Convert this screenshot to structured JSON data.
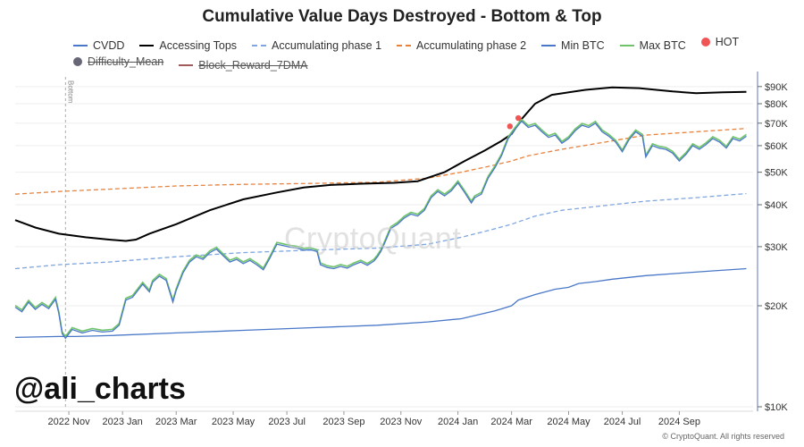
{
  "chart_data": {
    "type": "line",
    "title": "Cumulative Value Days Destroyed - Bottom & Top",
    "yscale": "log",
    "ylim": [
      10000,
      95000
    ],
    "y_ticks": [
      {
        "value": 10000,
        "label": "$10K"
      },
      {
        "value": 20000,
        "label": "$20K"
      },
      {
        "value": 30000,
        "label": "$30K"
      },
      {
        "value": 40000,
        "label": "$40K"
      },
      {
        "value": 50000,
        "label": "$50K"
      },
      {
        "value": 60000,
        "label": "$60K"
      },
      {
        "value": 70000,
        "label": "$70K"
      },
      {
        "value": 80000,
        "label": "$80K"
      },
      {
        "value": 90000,
        "label": "$90K"
      }
    ],
    "x_ticks": [
      {
        "value": 2022.88,
        "label": "2022 Nov"
      },
      {
        "value": 2023.04,
        "label": "2023 Jan"
      },
      {
        "value": 2023.2,
        "label": "2023 Mar"
      },
      {
        "value": 2023.37,
        "label": "2023 May"
      },
      {
        "value": 2023.53,
        "label": "2023 Jul"
      },
      {
        "value": 2023.7,
        "label": "2023 Sep"
      },
      {
        "value": 2023.87,
        "label": "2023 Nov"
      },
      {
        "value": 2024.04,
        "label": "2024 Jan"
      },
      {
        "value": 2024.2,
        "label": "2024 Mar"
      },
      {
        "value": 2024.37,
        "label": "2024 May"
      },
      {
        "value": 2024.53,
        "label": "2024 Jul"
      },
      {
        "value": 2024.7,
        "label": "2024 Sep"
      }
    ],
    "xlim": [
      2022.72,
      2024.92
    ],
    "vline": {
      "x": 2022.87,
      "label": "Bottom"
    },
    "series": [
      {
        "name": "Accessing Tops",
        "color": "#000000",
        "style": "solid",
        "points": [
          [
            2022.72,
            36000
          ],
          [
            2022.78,
            34200
          ],
          [
            2022.85,
            32800
          ],
          [
            2022.93,
            32000
          ],
          [
            2023.0,
            31500
          ],
          [
            2023.05,
            31200
          ],
          [
            2023.08,
            31500
          ],
          [
            2023.12,
            32800
          ],
          [
            2023.2,
            35000
          ],
          [
            2023.3,
            38500
          ],
          [
            2023.4,
            41500
          ],
          [
            2023.5,
            43500
          ],
          [
            2023.58,
            45000
          ],
          [
            2023.66,
            45800
          ],
          [
            2023.75,
            46200
          ],
          [
            2023.85,
            46500
          ],
          [
            2023.92,
            47000
          ],
          [
            2024.0,
            50000
          ],
          [
            2024.06,
            54000
          ],
          [
            2024.12,
            58000
          ],
          [
            2024.17,
            62000
          ],
          [
            2024.2,
            65000
          ],
          [
            2024.23,
            72000
          ],
          [
            2024.27,
            80000
          ],
          [
            2024.32,
            85000
          ],
          [
            2024.42,
            88000
          ],
          [
            2024.5,
            89500
          ],
          [
            2024.58,
            89000
          ],
          [
            2024.68,
            87000
          ],
          [
            2024.75,
            86000
          ],
          [
            2024.83,
            86500
          ],
          [
            2024.9,
            86800
          ]
        ]
      },
      {
        "name": "Accumulating phase 2",
        "color": "#e8823a",
        "style": "dashed",
        "points": [
          [
            2022.72,
            43000
          ],
          [
            2022.85,
            43800
          ],
          [
            2023.0,
            44500
          ],
          [
            2023.2,
            45500
          ],
          [
            2023.4,
            46000
          ],
          [
            2023.6,
            46300
          ],
          [
            2023.8,
            46700
          ],
          [
            2023.95,
            48000
          ],
          [
            2024.05,
            50000
          ],
          [
            2024.13,
            52000
          ],
          [
            2024.2,
            54000
          ],
          [
            2024.25,
            56000
          ],
          [
            2024.35,
            58500
          ],
          [
            2024.5,
            62000
          ],
          [
            2024.6,
            64500
          ],
          [
            2024.75,
            66000
          ],
          [
            2024.9,
            67500
          ]
        ]
      },
      {
        "name": "Accumulating phase 1",
        "color": "#7fa6e0",
        "style": "dashed",
        "points": [
          [
            2022.72,
            25800
          ],
          [
            2022.85,
            26500
          ],
          [
            2023.0,
            27000
          ],
          [
            2023.2,
            28000
          ],
          [
            2023.4,
            28800
          ],
          [
            2023.6,
            29300
          ],
          [
            2023.8,
            29700
          ],
          [
            2023.95,
            30500
          ],
          [
            2024.05,
            32000
          ],
          [
            2024.13,
            33500
          ],
          [
            2024.2,
            35000
          ],
          [
            2024.27,
            37000
          ],
          [
            2024.35,
            38500
          ],
          [
            2024.5,
            40000
          ],
          [
            2024.6,
            41000
          ],
          [
            2024.75,
            42000
          ],
          [
            2024.9,
            43200
          ]
        ]
      },
      {
        "name": "Min BTC",
        "color": "#4a78c8",
        "style": "solid",
        "points": [
          [
            2022.72,
            16100
          ],
          [
            2022.85,
            16200
          ],
          [
            2022.9,
            16200
          ],
          [
            2023.0,
            16300
          ],
          [
            2023.2,
            16600
          ],
          [
            2023.4,
            16900
          ],
          [
            2023.6,
            17200
          ],
          [
            2023.8,
            17500
          ],
          [
            2023.95,
            17900
          ],
          [
            2024.05,
            18300
          ],
          [
            2024.1,
            18800
          ],
          [
            2024.15,
            19300
          ],
          [
            2024.2,
            20000
          ],
          [
            2024.22,
            20800
          ],
          [
            2024.27,
            21600
          ],
          [
            2024.33,
            22400
          ],
          [
            2024.37,
            22700
          ],
          [
            2024.4,
            23300
          ],
          [
            2024.45,
            23600
          ],
          [
            2024.5,
            24000
          ],
          [
            2024.55,
            24300
          ],
          [
            2024.6,
            24600
          ],
          [
            2024.7,
            25000
          ],
          [
            2024.8,
            25400
          ],
          [
            2024.9,
            25800
          ]
        ]
      },
      {
        "name": "CVDD",
        "color": "#4a78c8",
        "style": "solid",
        "points": [
          [
            2022.72,
            19800
          ],
          [
            2022.74,
            19200
          ],
          [
            2022.76,
            20500
          ],
          [
            2022.78,
            19500
          ],
          [
            2022.8,
            20200
          ],
          [
            2022.82,
            19600
          ],
          [
            2022.84,
            20900
          ],
          [
            2022.85,
            19000
          ],
          [
            2022.86,
            16500
          ],
          [
            2022.87,
            16000
          ],
          [
            2022.89,
            17000
          ],
          [
            2022.92,
            16600
          ],
          [
            2022.95,
            16900
          ],
          [
            2022.98,
            16700
          ],
          [
            2023.01,
            16800
          ],
          [
            2023.03,
            17500
          ],
          [
            2023.05,
            20800
          ],
          [
            2023.07,
            21200
          ],
          [
            2023.09,
            22500
          ],
          [
            2023.1,
            23200
          ],
          [
            2023.12,
            22000
          ],
          [
            2023.13,
            23500
          ],
          [
            2023.15,
            24500
          ],
          [
            2023.17,
            23800
          ],
          [
            2023.19,
            20500
          ],
          [
            2023.2,
            22200
          ],
          [
            2023.22,
            25000
          ],
          [
            2023.24,
            27000
          ],
          [
            2023.26,
            28000
          ],
          [
            2023.28,
            27500
          ],
          [
            2023.3,
            28800
          ],
          [
            2023.32,
            29500
          ],
          [
            2023.34,
            28200
          ],
          [
            2023.36,
            27000
          ],
          [
            2023.38,
            27500
          ],
          [
            2023.4,
            26700
          ],
          [
            2023.42,
            27300
          ],
          [
            2023.44,
            26500
          ],
          [
            2023.46,
            25600
          ],
          [
            2023.48,
            27800
          ],
          [
            2023.5,
            30500
          ],
          [
            2023.52,
            30200
          ],
          [
            2023.54,
            29900
          ],
          [
            2023.56,
            29700
          ],
          [
            2023.58,
            29300
          ],
          [
            2023.6,
            29400
          ],
          [
            2023.62,
            29000
          ],
          [
            2023.63,
            26500
          ],
          [
            2023.65,
            26000
          ],
          [
            2023.67,
            25800
          ],
          [
            2023.69,
            26200
          ],
          [
            2023.71,
            25900
          ],
          [
            2023.73,
            26500
          ],
          [
            2023.75,
            27000
          ],
          [
            2023.77,
            26400
          ],
          [
            2023.79,
            27200
          ],
          [
            2023.8,
            28000
          ],
          [
            2023.81,
            29000
          ],
          [
            2023.82,
            30500
          ],
          [
            2023.84,
            34000
          ],
          [
            2023.86,
            35000
          ],
          [
            2023.88,
            36500
          ],
          [
            2023.9,
            37500
          ],
          [
            2023.92,
            37000
          ],
          [
            2023.94,
            38500
          ],
          [
            2023.96,
            42000
          ],
          [
            2023.98,
            43800
          ],
          [
            2024.0,
            42500
          ],
          [
            2024.02,
            44000
          ],
          [
            2024.04,
            46500
          ],
          [
            2024.06,
            43500
          ],
          [
            2024.08,
            40500
          ],
          [
            2024.09,
            42000
          ],
          [
            2024.11,
            43000
          ],
          [
            2024.13,
            48000
          ],
          [
            2024.15,
            51500
          ],
          [
            2024.17,
            56000
          ],
          [
            2024.19,
            63000
          ],
          [
            2024.21,
            67000
          ],
          [
            2024.23,
            71000
          ],
          [
            2024.25,
            68000
          ],
          [
            2024.27,
            69000
          ],
          [
            2024.29,
            66000
          ],
          [
            2024.31,
            63500
          ],
          [
            2024.33,
            64500
          ],
          [
            2024.35,
            61000
          ],
          [
            2024.37,
            63000
          ],
          [
            2024.39,
            66500
          ],
          [
            2024.41,
            69000
          ],
          [
            2024.43,
            68000
          ],
          [
            2024.45,
            70000
          ],
          [
            2024.47,
            66000
          ],
          [
            2024.49,
            64000
          ],
          [
            2024.51,
            61500
          ],
          [
            2024.53,
            57500
          ],
          [
            2024.55,
            62500
          ],
          [
            2024.57,
            66000
          ],
          [
            2024.59,
            64000
          ],
          [
            2024.6,
            55500
          ],
          [
            2024.62,
            60000
          ],
          [
            2024.64,
            59000
          ],
          [
            2024.66,
            58500
          ],
          [
            2024.68,
            57000
          ],
          [
            2024.7,
            54000
          ],
          [
            2024.72,
            56500
          ],
          [
            2024.74,
            60000
          ],
          [
            2024.76,
            58500
          ],
          [
            2024.78,
            60500
          ],
          [
            2024.8,
            63000
          ],
          [
            2024.82,
            61500
          ],
          [
            2024.84,
            59000
          ],
          [
            2024.86,
            63000
          ],
          [
            2024.88,
            62000
          ],
          [
            2024.9,
            64000
          ]
        ]
      }
    ],
    "hot_points": [
      [
        2024.195,
        68500
      ],
      [
        2024.22,
        72500
      ]
    ],
    "legend": [
      {
        "name": "CVDD",
        "color": "#4a78c8",
        "marker": "line",
        "hidden": false
      },
      {
        "name": "Accessing Tops",
        "color": "#000000",
        "marker": "line",
        "hidden": false
      },
      {
        "name": "Accumulating phase 1",
        "color": "#7fa6e0",
        "marker": "dashed",
        "hidden": false
      },
      {
        "name": "Accumulating phase 2",
        "color": "#e8823a",
        "marker": "dashed",
        "hidden": false
      },
      {
        "name": "Min BTC",
        "color": "#4a78c8",
        "marker": "line",
        "hidden": false
      },
      {
        "name": "Max BTC",
        "color": "#6fc46a",
        "marker": "line",
        "hidden": false
      },
      {
        "name": "HOT",
        "color": "#f05454",
        "marker": "dot",
        "hidden": false
      },
      {
        "name": "Difficulty_Mean",
        "color": "#666677",
        "marker": "dot",
        "hidden": true
      },
      {
        "name": "Block_Reward_7DMA",
        "color": "#a05a5a",
        "marker": "line",
        "hidden": true
      }
    ],
    "max_btc_color": "#6fc46a"
  },
  "watermark": "CryptoQuant",
  "handle": "@ali_charts",
  "copyright": "© CryptoQuant. All rights reserved"
}
